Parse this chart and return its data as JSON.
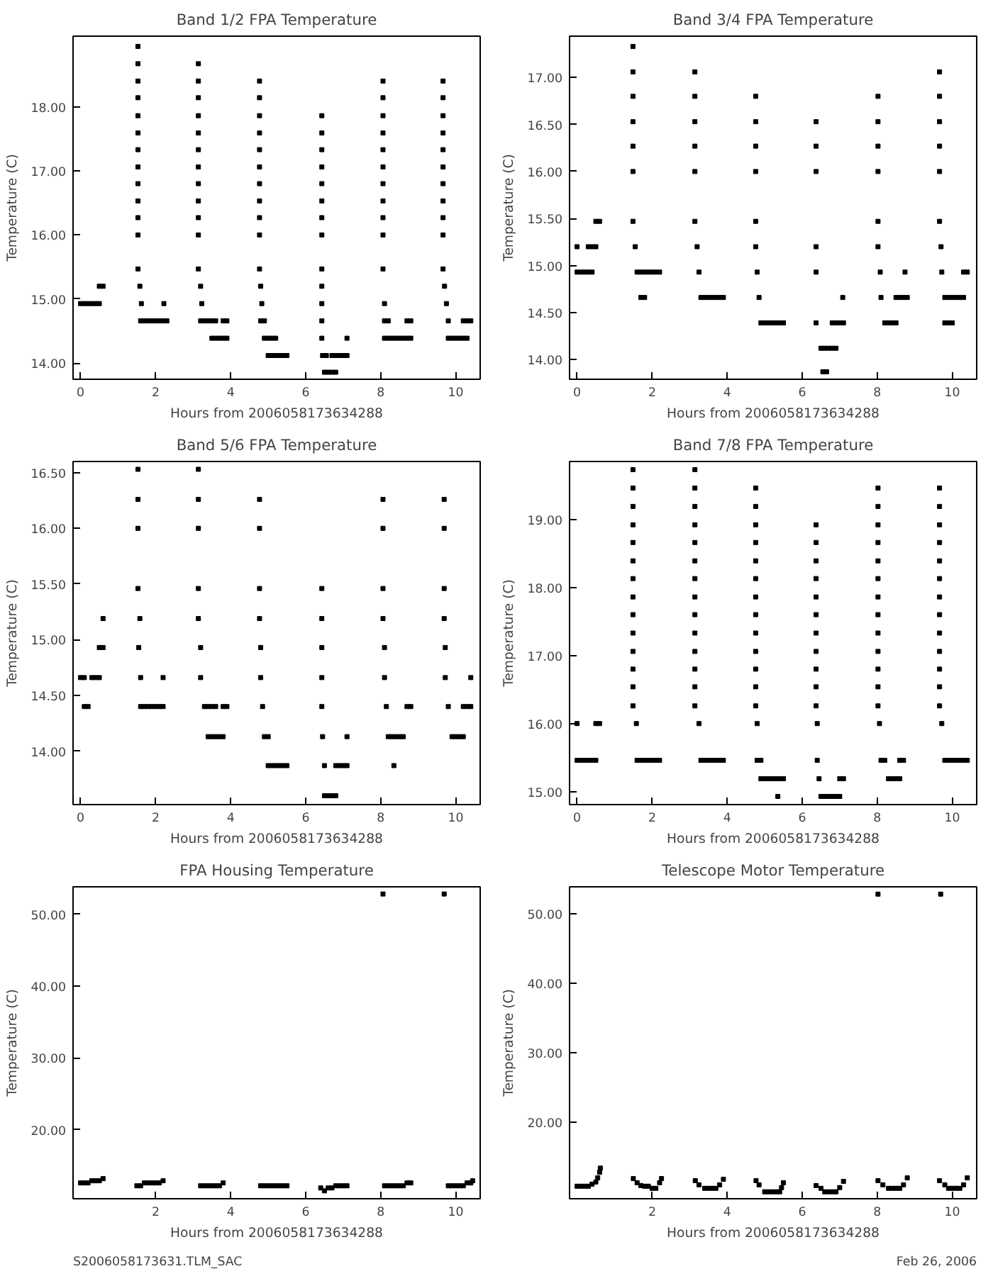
{
  "chart_data": [
    {
      "type": "scatter",
      "title": "Band 1/2 FPA Temperature",
      "xlabel": "Hours from 2006058173634288",
      "ylabel": "Temperature (C)",
      "marker": "square",
      "grid": false,
      "xlim": [
        -0.2,
        10.65
      ],
      "xticks": [
        0,
        2,
        4,
        6,
        8,
        10
      ],
      "ylim": [
        13.75,
        19.1
      ],
      "yticks": [
        {
          "value": 14,
          "label": "14.00"
        },
        {
          "value": 15,
          "label": "15.00"
        },
        {
          "value": 16,
          "label": "16.00"
        },
        {
          "value": 17,
          "label": "17.00"
        },
        {
          "value": 18,
          "label": "18.00"
        }
      ],
      "series": [
        {
          "color": "#000000",
          "x": [
            0,
            0.1,
            0.2,
            0.3,
            0.4,
            0.5,
            1.62,
            2.22,
            3.23,
            4.83,
            6.43,
            8.1,
            9.75
          ],
          "values": [
            14.93,
            14.93,
            14.93,
            14.93,
            14.93,
            14.93,
            14.93,
            14.93,
            14.93,
            14.93,
            14.93,
            14.93,
            14.93
          ]
        },
        {
          "color": "#000000",
          "x": [
            0.5,
            0.6,
            1.58,
            3.2,
            4.8,
            6.43,
            9.7
          ],
          "values": [
            15.2,
            15.2,
            15.2,
            15.2,
            15.2,
            15.2,
            15.2
          ]
        },
        {
          "color": "#000000",
          "x": [
            1.6,
            1.7,
            1.8,
            1.9,
            2.0,
            2.1,
            2.2,
            2.3,
            3.2,
            3.3,
            3.4,
            3.5,
            3.6,
            3.8,
            3.9,
            4.8,
            4.9,
            6.43,
            8.1,
            8.2,
            8.7,
            8.8,
            9.8,
            10.2,
            10.3,
            10.4
          ],
          "values": [
            14.66,
            14.66,
            14.66,
            14.66,
            14.66,
            14.66,
            14.66,
            14.66,
            14.66,
            14.66,
            14.66,
            14.66,
            14.66,
            14.66,
            14.66,
            14.66,
            14.66,
            14.66,
            14.66,
            14.66,
            14.66,
            14.66,
            14.66,
            14.66,
            14.66,
            14.66
          ]
        },
        {
          "color": "#000000",
          "x": [
            3.5,
            3.6,
            3.7,
            3.8,
            3.9,
            4.9,
            5.0,
            5.1,
            5.2,
            6.43,
            7.1,
            8.1,
            8.2,
            8.3,
            8.4,
            8.5,
            8.6,
            8.7,
            8.8,
            9.8,
            9.9,
            10.0,
            10.1,
            10.2,
            10.3
          ],
          "values": [
            14.39,
            14.39,
            14.39,
            14.39,
            14.39,
            14.39,
            14.39,
            14.39,
            14.39,
            14.39,
            14.39,
            14.39,
            14.39,
            14.39,
            14.39,
            14.39,
            14.39,
            14.39,
            14.39,
            14.39,
            14.39,
            14.39,
            14.39,
            14.39,
            14.39
          ]
        },
        {
          "color": "#000000",
          "x": [
            5.0,
            5.1,
            5.2,
            5.3,
            5.4,
            5.5,
            6.45,
            6.55,
            6.7,
            6.8,
            6.9,
            7.0,
            7.1
          ],
          "values": [
            14.12,
            14.12,
            14.12,
            14.12,
            14.12,
            14.12,
            14.12,
            14.12,
            14.12,
            14.12,
            14.12,
            14.12,
            14.12
          ]
        },
        {
          "color": "#000000",
          "x": [
            6.5,
            6.6,
            6.7,
            6.8
          ],
          "values": [
            13.86,
            13.86,
            13.86,
            13.86
          ]
        },
        {
          "color": "#000000",
          "x": [
            1.53,
            1.53,
            1.53,
            1.53,
            1.53,
            1.53,
            1.53,
            1.53,
            1.53,
            1.53,
            1.53,
            1.53,
            1.53
          ],
          "values": [
            15.47,
            16.0,
            16.27,
            16.53,
            16.8,
            17.06,
            17.33,
            17.59,
            17.86,
            18.14,
            18.4,
            18.67,
            18.94
          ]
        },
        {
          "color": "#000000",
          "x": [
            3.14,
            3.14,
            3.14,
            3.14,
            3.14,
            3.14,
            3.14,
            3.14,
            3.14,
            3.14,
            3.14,
            3.14
          ],
          "values": [
            15.47,
            16.0,
            16.27,
            16.53,
            16.8,
            17.06,
            17.33,
            17.59,
            17.86,
            18.14,
            18.4,
            18.67
          ]
        },
        {
          "color": "#000000",
          "x": [
            4.77,
            4.77,
            4.77,
            4.77,
            4.77,
            4.77,
            4.77,
            4.77,
            4.77,
            4.77,
            4.77
          ],
          "values": [
            15.47,
            16.0,
            16.27,
            16.53,
            16.8,
            17.06,
            17.33,
            17.59,
            17.86,
            18.14,
            18.4
          ]
        },
        {
          "color": "#000000",
          "x": [
            6.43,
            6.43,
            6.43,
            6.43,
            6.43,
            6.43,
            6.43,
            6.43,
            6.43
          ],
          "values": [
            15.47,
            16.0,
            16.27,
            16.53,
            16.8,
            17.06,
            17.33,
            17.59,
            17.86
          ]
        },
        {
          "color": "#000000",
          "x": [
            8.06,
            8.06,
            8.06,
            8.06,
            8.06,
            8.06,
            8.06,
            8.06,
            8.06,
            8.06,
            8.06
          ],
          "values": [
            15.47,
            16.0,
            16.27,
            16.53,
            16.8,
            17.06,
            17.33,
            17.59,
            17.86,
            18.14,
            18.4
          ]
        },
        {
          "color": "#000000",
          "x": [
            9.66,
            9.66,
            9.66,
            9.66,
            9.66,
            9.66,
            9.66,
            9.66,
            9.66,
            9.66,
            9.66
          ],
          "values": [
            15.47,
            16.0,
            16.27,
            16.53,
            16.8,
            17.06,
            17.33,
            17.59,
            17.86,
            18.14,
            18.4
          ]
        }
      ]
    },
    {
      "type": "scatter",
      "title": "Band 3/4 FPA Temperature",
      "xlabel": "Hours from 2006058173634288",
      "ylabel": "Temperature (C)",
      "marker": "square",
      "grid": false,
      "xlim": [
        -0.2,
        10.65
      ],
      "xticks": [
        0,
        2,
        4,
        6,
        8,
        10
      ],
      "ylim": [
        13.79,
        17.44
      ],
      "yticks": [
        {
          "value": 14,
          "label": "14.00"
        },
        {
          "value": 14.5,
          "label": "14.50"
        },
        {
          "value": 15,
          "label": "15.00"
        },
        {
          "value": 15.5,
          "label": "15.50"
        },
        {
          "value": 16,
          "label": "16.00"
        },
        {
          "value": 16.5,
          "label": "16.50"
        },
        {
          "value": 17,
          "label": "17.00"
        }
      ],
      "series": [
        {
          "color": "#000000",
          "x": [
            0,
            0.1,
            0.2,
            0.3,
            0.4,
            1.6,
            1.7,
            1.8,
            1.9,
            2.0,
            2.1,
            2.2,
            3.25,
            4.8,
            6.37,
            8.08,
            8.74,
            9.72,
            10.3,
            10.4
          ],
          "values": [
            14.93,
            14.93,
            14.93,
            14.93,
            14.93,
            14.93,
            14.93,
            14.93,
            14.93,
            14.93,
            14.93,
            14.93,
            14.93,
            14.93,
            14.93,
            14.93,
            14.93,
            14.93,
            14.93,
            14.93
          ]
        },
        {
          "color": "#000000",
          "x": [
            0,
            0.3,
            0.4,
            0.5,
            1.55,
            3.2,
            4.76,
            6.37,
            8.02,
            9.7
          ],
          "values": [
            15.2,
            15.2,
            15.2,
            15.2,
            15.2,
            15.2,
            15.2,
            15.2,
            15.2,
            15.2
          ]
        },
        {
          "color": "#000000",
          "x": [
            0.5,
            0.6
          ],
          "values": [
            15.47,
            15.47
          ]
        },
        {
          "color": "#000000",
          "x": [
            1.7,
            1.8,
            3.3,
            3.4,
            3.5,
            3.6,
            3.7,
            3.8,
            3.9,
            4.85,
            7.08,
            8.1,
            8.5,
            8.6,
            8.7,
            8.8,
            9.8,
            9.9,
            10.0,
            10.1,
            10.2,
            10.3
          ],
          "values": [
            14.66,
            14.66,
            14.66,
            14.66,
            14.66,
            14.66,
            14.66,
            14.66,
            14.66,
            14.66,
            14.66,
            14.66,
            14.66,
            14.66,
            14.66,
            14.66,
            14.66,
            14.66,
            14.66,
            14.66,
            14.66,
            14.66
          ]
        },
        {
          "color": "#000000",
          "x": [
            4.9,
            5.0,
            5.1,
            5.2,
            5.3,
            5.4,
            5.5,
            6.37,
            6.8,
            6.9,
            7.0,
            7.1,
            8.2,
            8.3,
            8.4,
            8.5,
            9.8,
            9.9,
            10.0
          ],
          "values": [
            14.39,
            14.39,
            14.39,
            14.39,
            14.39,
            14.39,
            14.39,
            14.39,
            14.39,
            14.39,
            14.39,
            14.39,
            14.39,
            14.39,
            14.39,
            14.39,
            14.39,
            14.39,
            14.39
          ]
        },
        {
          "color": "#000000",
          "x": [
            6.5,
            6.6,
            6.7,
            6.8,
            6.9
          ],
          "values": [
            14.12,
            14.12,
            14.12,
            14.12,
            14.12
          ]
        },
        {
          "color": "#000000",
          "x": [
            6.55,
            6.65
          ],
          "values": [
            13.87,
            13.87
          ]
        },
        {
          "color": "#000000",
          "x": [
            1.49,
            1.49,
            1.49,
            1.49,
            1.49,
            1.49,
            1.49
          ],
          "values": [
            15.47,
            16.0,
            16.27,
            16.53,
            16.8,
            17.06,
            17.33
          ]
        },
        {
          "color": "#000000",
          "x": [
            3.14,
            3.14,
            3.14,
            3.14,
            3.14,
            3.14
          ],
          "values": [
            15.47,
            16.0,
            16.27,
            16.53,
            16.8,
            17.06
          ]
        },
        {
          "color": "#000000",
          "x": [
            4.76,
            4.76,
            4.76,
            4.76,
            4.76
          ],
          "values": [
            15.47,
            16.0,
            16.27,
            16.53,
            16.8
          ]
        },
        {
          "color": "#000000",
          "x": [
            6.37,
            6.37,
            6.37
          ],
          "values": [
            16.0,
            16.27,
            16.53
          ]
        },
        {
          "color": "#000000",
          "x": [
            8.02,
            8.02,
            8.02,
            8.02,
            8.02
          ],
          "values": [
            15.47,
            16.0,
            16.27,
            16.53,
            16.8
          ]
        },
        {
          "color": "#000000",
          "x": [
            9.66,
            9.66,
            9.66,
            9.66,
            9.66,
            9.66
          ],
          "values": [
            15.47,
            16.0,
            16.27,
            16.53,
            16.8,
            17.06
          ]
        }
      ]
    },
    {
      "type": "scatter",
      "title": "Band 5/6 FPA Temperature",
      "xlabel": "Hours from 2006058173634288",
      "ylabel": "Temperature (C)",
      "marker": "square",
      "grid": false,
      "xlim": [
        -0.2,
        10.65
      ],
      "xticks": [
        0,
        2,
        4,
        6,
        8,
        10
      ],
      "ylim": [
        13.52,
        16.6
      ],
      "yticks": [
        {
          "value": 14,
          "label": "14.00"
        },
        {
          "value": 14.5,
          "label": "14.50"
        },
        {
          "value": 15,
          "label": "15.00"
        },
        {
          "value": 15.5,
          "label": "15.50"
        },
        {
          "value": 16,
          "label": "16.00"
        },
        {
          "value": 16.5,
          "label": "16.50"
        }
      ],
      "series": [
        {
          "color": "#000000",
          "x": [
            0,
            0.1,
            0.3,
            0.4,
            0.5,
            1.6,
            2.2,
            3.2,
            4.8,
            6.43,
            8.1,
            9.72,
            10.4
          ],
          "values": [
            14.66,
            14.66,
            14.66,
            14.66,
            14.66,
            14.66,
            14.66,
            14.66,
            14.66,
            14.66,
            14.66,
            14.66,
            14.66
          ]
        },
        {
          "color": "#000000",
          "x": [
            0.1,
            0.2,
            1.6,
            1.7,
            1.8,
            1.9,
            2.0,
            2.1,
            2.2,
            3.3,
            3.4,
            3.5,
            3.6,
            3.8,
            3.9,
            4.85,
            6.43,
            8.15,
            8.7,
            8.8,
            9.8,
            10.2,
            10.3,
            10.4
          ],
          "values": [
            14.4,
            14.4,
            14.4,
            14.4,
            14.4,
            14.4,
            14.4,
            14.4,
            14.4,
            14.4,
            14.4,
            14.4,
            14.4,
            14.4,
            14.4,
            14.4,
            14.4,
            14.4,
            14.4,
            14.4,
            14.4,
            14.4,
            14.4,
            14.4
          ]
        },
        {
          "color": "#000000",
          "x": [
            0.5,
            0.6,
            1.55,
            3.2,
            4.8,
            6.43,
            8.1,
            9.72
          ],
          "values": [
            14.93,
            14.93,
            14.93,
            14.93,
            14.93,
            14.93,
            14.93,
            14.93
          ]
        },
        {
          "color": "#000000",
          "x": [
            0.6,
            1.58,
            3.14,
            4.77,
            6.43,
            8.06,
            9.69
          ],
          "values": [
            15.19,
            15.19,
            15.19,
            15.19,
            15.19,
            15.19,
            15.19
          ]
        },
        {
          "color": "#000000",
          "x": [
            3.4,
            3.5,
            3.6,
            3.7,
            3.8,
            4.9,
            5.0,
            6.45,
            7.1,
            8.2,
            8.3,
            8.4,
            8.5,
            8.6,
            9.9,
            10.0,
            10.1,
            10.2
          ],
          "values": [
            14.13,
            14.13,
            14.13,
            14.13,
            14.13,
            14.13,
            14.13,
            14.13,
            14.13,
            14.13,
            14.13,
            14.13,
            14.13,
            14.13,
            14.13,
            14.13,
            14.13,
            14.13
          ]
        },
        {
          "color": "#000000",
          "x": [
            5.0,
            5.1,
            5.2,
            5.3,
            5.4,
            5.5,
            6.5,
            6.8,
            6.9,
            7.0,
            7.1,
            8.35
          ],
          "values": [
            13.87,
            13.87,
            13.87,
            13.87,
            13.87,
            13.87,
            13.87,
            13.87,
            13.87,
            13.87,
            13.87,
            13.87
          ]
        },
        {
          "color": "#000000",
          "x": [
            6.5,
            6.6,
            6.7,
            6.8
          ],
          "values": [
            13.6,
            13.6,
            13.6,
            13.6
          ]
        },
        {
          "color": "#000000",
          "x": [
            1.53,
            1.53,
            1.53,
            1.53
          ],
          "values": [
            15.46,
            16.0,
            16.26,
            16.53
          ]
        },
        {
          "color": "#000000",
          "x": [
            3.14,
            3.14,
            3.14,
            3.14
          ],
          "values": [
            15.46,
            16.0,
            16.26,
            16.53
          ]
        },
        {
          "color": "#000000",
          "x": [
            4.77,
            4.77,
            4.77
          ],
          "values": [
            15.46,
            16.0,
            16.26
          ]
        },
        {
          "color": "#000000",
          "x": [
            6.43
          ],
          "values": [
            15.46
          ]
        },
        {
          "color": "#000000",
          "x": [
            8.06,
            8.06,
            8.06
          ],
          "values": [
            15.46,
            16.0,
            16.26
          ]
        },
        {
          "color": "#000000",
          "x": [
            9.69,
            9.69,
            9.69
          ],
          "values": [
            15.46,
            16.0,
            16.26
          ]
        }
      ]
    },
    {
      "type": "scatter",
      "title": "Band 7/8 FPA Temperature",
      "xlabel": "Hours from 2006058173634288",
      "ylabel": "Temperature (C)",
      "marker": "square",
      "grid": false,
      "xlim": [
        -0.2,
        10.65
      ],
      "xticks": [
        0,
        2,
        4,
        6,
        8,
        10
      ],
      "ylim": [
        14.81,
        19.85
      ],
      "yticks": [
        {
          "value": 15,
          "label": "15.00"
        },
        {
          "value": 16,
          "label": "16.00"
        },
        {
          "value": 17,
          "label": "17.00"
        },
        {
          "value": 18,
          "label": "18.00"
        },
        {
          "value": 19,
          "label": "19.00"
        }
      ],
      "series": [
        {
          "color": "#000000",
          "x": [
            0,
            0.5,
            0.6,
            1.58,
            3.25,
            4.8,
            6.4,
            8.06,
            9.72
          ],
          "values": [
            16.0,
            16.0,
            16.0,
            16.0,
            16.0,
            16.0,
            16.0,
            16.0,
            16.0
          ]
        },
        {
          "color": "#000000",
          "x": [
            0,
            0.1,
            0.2,
            0.3,
            0.4,
            0.5,
            1.6,
            1.7,
            1.8,
            1.9,
            2.0,
            2.1,
            2.2,
            3.3,
            3.4,
            3.5,
            3.6,
            3.7,
            3.8,
            3.9,
            4.8,
            4.9,
            6.4,
            8.1,
            8.2,
            8.6,
            8.7,
            9.8,
            9.9,
            10.0,
            10.1,
            10.2,
            10.3,
            10.4
          ],
          "values": [
            15.46,
            15.46,
            15.46,
            15.46,
            15.46,
            15.46,
            15.46,
            15.46,
            15.46,
            15.46,
            15.46,
            15.46,
            15.46,
            15.46,
            15.46,
            15.46,
            15.46,
            15.46,
            15.46,
            15.46,
            15.46,
            15.46,
            15.46,
            15.46,
            15.46,
            15.46,
            15.46,
            15.46,
            15.46,
            15.46,
            15.46,
            15.46,
            15.46,
            15.46
          ]
        },
        {
          "color": "#000000",
          "x": [
            4.9,
            5.0,
            5.1,
            5.2,
            5.3,
            5.4,
            5.5,
            6.45,
            7.0,
            7.1,
            8.3,
            8.4,
            8.5,
            8.6
          ],
          "values": [
            15.19,
            15.19,
            15.19,
            15.19,
            15.19,
            15.19,
            15.19,
            15.19,
            15.19,
            15.19,
            15.19,
            15.19,
            15.19,
            15.19
          ]
        },
        {
          "color": "#000000",
          "x": [
            5.35,
            6.5,
            6.6,
            6.7,
            6.8,
            6.9,
            7.0
          ],
          "values": [
            14.93,
            14.93,
            14.93,
            14.93,
            14.93,
            14.93,
            14.93
          ]
        },
        {
          "color": "#000000",
          "x": [
            1.49,
            1.49,
            1.49,
            1.49,
            1.49,
            1.49,
            1.49,
            1.49,
            1.49,
            1.49,
            1.49,
            1.49,
            1.49,
            1.49
          ],
          "values": [
            16.26,
            16.54,
            16.8,
            17.06,
            17.33,
            17.6,
            17.86,
            18.13,
            18.39,
            18.66,
            18.92,
            19.19,
            19.46,
            19.73
          ]
        },
        {
          "color": "#000000",
          "x": [
            3.14,
            3.14,
            3.14,
            3.14,
            3.14,
            3.14,
            3.14,
            3.14,
            3.14,
            3.14,
            3.14,
            3.14,
            3.14,
            3.14
          ],
          "values": [
            16.26,
            16.54,
            16.8,
            17.06,
            17.33,
            17.6,
            17.86,
            18.13,
            18.39,
            18.66,
            18.92,
            19.19,
            19.46,
            19.73
          ]
        },
        {
          "color": "#000000",
          "x": [
            4.76,
            4.76,
            4.76,
            4.76,
            4.76,
            4.76,
            4.76,
            4.76,
            4.76,
            4.76,
            4.76,
            4.76,
            4.76
          ],
          "values": [
            16.26,
            16.54,
            16.8,
            17.06,
            17.33,
            17.6,
            17.86,
            18.13,
            18.39,
            18.66,
            18.92,
            19.19,
            19.46
          ]
        },
        {
          "color": "#000000",
          "x": [
            6.37,
            6.37,
            6.37,
            6.37,
            6.37,
            6.37,
            6.37,
            6.37,
            6.37,
            6.37,
            6.37
          ],
          "values": [
            16.26,
            16.54,
            16.8,
            17.06,
            17.33,
            17.6,
            17.86,
            18.13,
            18.39,
            18.66,
            18.92
          ]
        },
        {
          "color": "#000000",
          "x": [
            8.02,
            8.02,
            8.02,
            8.02,
            8.02,
            8.02,
            8.02,
            8.02,
            8.02,
            8.02,
            8.02,
            8.02,
            8.02
          ],
          "values": [
            16.26,
            16.54,
            16.8,
            17.06,
            17.33,
            17.6,
            17.86,
            18.13,
            18.39,
            18.66,
            18.92,
            19.19,
            19.46
          ]
        },
        {
          "color": "#000000",
          "x": [
            9.66,
            9.66,
            9.66,
            9.66,
            9.66,
            9.66,
            9.66,
            9.66,
            9.66,
            9.66,
            9.66,
            9.66,
            9.66
          ],
          "values": [
            16.26,
            16.54,
            16.8,
            17.06,
            17.33,
            17.6,
            17.86,
            18.13,
            18.39,
            18.66,
            18.92,
            19.19,
            19.46
          ]
        }
      ]
    },
    {
      "type": "scatter",
      "title": "FPA Housing Temperature",
      "xlabel": "Hours from 2006058173634288",
      "ylabel": "Temperature (C)",
      "marker": "square",
      "grid": false,
      "xlim": [
        -0.2,
        10.65
      ],
      "xticks": [
        2,
        4,
        6,
        8,
        10
      ],
      "ylim": [
        10.4,
        53.8
      ],
      "yticks": [
        {
          "value": 20,
          "label": "20.00"
        },
        {
          "value": 30,
          "label": "30.00"
        },
        {
          "value": 40,
          "label": "40.00"
        },
        {
          "value": 50,
          "label": "50.00"
        }
      ],
      "annotations": [
        "S2006058173631.TLM_SAC"
      ],
      "series": [
        {
          "color": "#000000",
          "x": [
            0,
            0.1,
            0.2,
            0.3,
            0.4,
            0.5,
            0.6,
            1.5,
            1.6,
            1.7,
            1.8,
            1.9,
            2.0,
            2.1,
            2.2,
            3.2,
            3.3,
            3.4,
            3.5,
            3.6,
            3.7,
            3.8,
            4.8,
            4.9,
            5.0,
            5.1,
            5.2,
            5.3,
            5.4,
            5.5,
            6.4,
            6.5,
            6.6,
            6.7,
            6.8,
            6.9,
            7.0,
            7.1,
            8.06,
            8.1,
            8.2,
            8.3,
            8.4,
            8.5,
            8.6,
            8.7,
            8.8,
            9.69,
            9.8,
            9.9,
            10.0,
            10.1,
            10.2,
            10.3,
            10.4,
            10.45
          ],
          "values": [
            12.6,
            12.6,
            12.6,
            12.9,
            12.9,
            12.9,
            13.2,
            12.2,
            12.2,
            12.6,
            12.6,
            12.6,
            12.6,
            12.6,
            12.9,
            12.2,
            12.2,
            12.2,
            12.2,
            12.2,
            12.2,
            12.6,
            12.2,
            12.2,
            12.2,
            12.2,
            12.2,
            12.2,
            12.2,
            12.2,
            11.9,
            11.5,
            11.9,
            11.9,
            12.2,
            12.2,
            12.2,
            12.2,
            52.8,
            12.2,
            12.2,
            12.2,
            12.2,
            12.2,
            12.2,
            12.6,
            12.6,
            52.8,
            12.2,
            12.2,
            12.2,
            12.2,
            12.2,
            12.6,
            12.6,
            12.9
          ]
        }
      ]
    },
    {
      "type": "scatter",
      "title": "Telescope Motor Temperature",
      "xlabel": "Hours from 2006058173634288",
      "ylabel": "Temperature (C)",
      "marker": "square",
      "grid": false,
      "xlim": [
        -0.2,
        10.65
      ],
      "xticks": [
        2,
        4,
        6,
        8,
        10
      ],
      "ylim": [
        9.0,
        53.85
      ],
      "yticks": [
        {
          "value": 20,
          "label": "20.00"
        },
        {
          "value": 30,
          "label": "30.00"
        },
        {
          "value": 40,
          "label": "40.00"
        },
        {
          "value": 50,
          "label": "50.00"
        }
      ],
      "annotations": [
        "Feb 26, 2006"
      ],
      "series": [
        {
          "color": "#000000",
          "x": [
            0,
            0.1,
            0.2,
            0.3,
            0.4,
            0.5,
            0.55,
            0.6,
            0.62,
            1.5,
            1.6,
            1.7,
            1.8,
            1.9,
            2.0,
            2.1,
            2.2,
            2.25,
            3.15,
            3.25,
            3.4,
            3.5,
            3.6,
            3.7,
            3.8,
            3.9,
            4.77,
            4.85,
            5.0,
            5.1,
            5.2,
            5.3,
            5.4,
            5.45,
            5.5,
            6.37,
            6.5,
            6.6,
            6.7,
            6.8,
            6.9,
            7.0,
            7.1,
            8.02,
            8.02,
            8.15,
            8.3,
            8.4,
            8.5,
            8.6,
            8.7,
            8.8,
            9.66,
            9.69,
            9.8,
            9.9,
            10.0,
            10.1,
            10.2,
            10.3,
            10.4
          ],
          "values": [
            10.8,
            10.8,
            10.8,
            10.8,
            11.1,
            11.4,
            12.0,
            12.8,
            13.4,
            11.9,
            11.3,
            10.9,
            10.8,
            10.8,
            10.5,
            10.5,
            11.3,
            11.9,
            11.6,
            11.0,
            10.5,
            10.5,
            10.5,
            10.5,
            11.0,
            11.8,
            11.6,
            11.0,
            10.0,
            10.0,
            10.0,
            10.0,
            10.0,
            10.6,
            11.3,
            10.9,
            10.5,
            10.0,
            10.0,
            10.0,
            10.0,
            10.6,
            11.5,
            11.6,
            52.8,
            11.0,
            10.5,
            10.5,
            10.5,
            10.5,
            11.0,
            12.0,
            11.6,
            52.8,
            11.0,
            10.5,
            10.5,
            10.5,
            10.5,
            11.0,
            12.0
          ]
        }
      ]
    }
  ]
}
